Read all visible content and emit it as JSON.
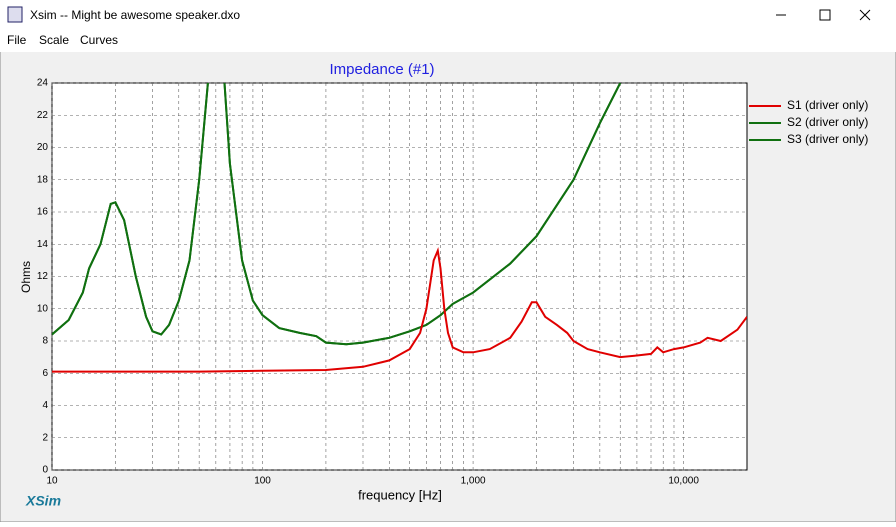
{
  "window": {
    "title": "Xsim -- Might be awesome speaker.dxo",
    "menu": [
      "File",
      "Scale",
      "Curves"
    ],
    "brand": "XSim"
  },
  "chart_data": {
    "type": "line",
    "title": "Impedance (#1)",
    "x_label": "frequency [Hz]",
    "y_label": "Ohms",
    "xscale": "log",
    "xlim": [
      10,
      20000
    ],
    "ylim": [
      0,
      24
    ],
    "xticks": [
      10,
      100,
      {
        "value": 1000,
        "label": "1,000"
      },
      {
        "value": 10000,
        "label": "10,000"
      }
    ],
    "xminor_ticks": [
      20,
      30,
      40,
      50,
      60,
      70,
      80,
      90,
      200,
      300,
      400,
      500,
      600,
      700,
      800,
      900,
      2000,
      3000,
      4000,
      5000,
      6000,
      7000,
      8000,
      9000
    ],
    "yticks": [
      0,
      2,
      4,
      6,
      8,
      10,
      12,
      14,
      16,
      18,
      20,
      22,
      24
    ],
    "grid": true,
    "legend": "right",
    "series": [
      {
        "name": "S1 (driver only)",
        "color": "#e00000",
        "x": [
          10,
          50,
          100,
          200,
          300,
          400,
          500,
          560,
          600,
          650,
          680,
          700,
          730,
          760,
          800,
          900,
          1000,
          1200,
          1500,
          1700,
          1900,
          2000,
          2200,
          2500,
          2800,
          3000,
          3500,
          4000,
          5000,
          6000,
          7000,
          7500,
          8000,
          9000,
          10000,
          12000,
          13000,
          15000,
          18000,
          20000
        ],
        "values": [
          6.1,
          6.1,
          6.15,
          6.2,
          6.4,
          6.8,
          7.5,
          8.5,
          10,
          13.0,
          13.6,
          12.5,
          10,
          8.5,
          7.6,
          7.3,
          7.3,
          7.5,
          8.2,
          9.2,
          10.4,
          10.4,
          9.5,
          9.0,
          8.5,
          8.0,
          7.5,
          7.3,
          7.0,
          7.1,
          7.2,
          7.6,
          7.3,
          7.5,
          7.6,
          7.9,
          8.2,
          8.0,
          8.7,
          9.5
        ]
      },
      {
        "name": "S2 (driver only)",
        "color": "#107010",
        "x": [
          10,
          12,
          14,
          15,
          17,
          19,
          20,
          22,
          25,
          28,
          30,
          33,
          36,
          40,
          45,
          50,
          55,
          60,
          66,
          70,
          80,
          90,
          100,
          120,
          150,
          180,
          200,
          250,
          300,
          400,
          500,
          600,
          700,
          800,
          1000,
          1500,
          2000,
          3000,
          4000,
          5000
        ],
        "values": [
          8.4,
          9.3,
          11,
          12.5,
          14,
          16.5,
          16.6,
          15.5,
          12,
          9.5,
          8.6,
          8.4,
          9.0,
          10.5,
          13,
          18,
          24,
          null,
          24,
          19,
          13,
          10.5,
          9.6,
          8.8,
          8.5,
          8.3,
          7.9,
          7.8,
          7.9,
          8.2,
          8.6,
          9.0,
          9.6,
          10.3,
          11.0,
          12.8,
          14.5,
          18,
          21.5,
          24
        ]
      },
      {
        "name": "S3 (driver only)",
        "color": "#107010",
        "x": [
          10,
          12,
          14,
          15,
          17,
          19,
          20,
          22,
          25,
          28,
          30,
          33,
          36,
          40,
          45,
          50,
          55,
          60,
          66,
          70,
          80,
          90,
          100,
          120,
          150,
          180,
          200,
          250,
          300,
          400,
          500,
          600,
          700,
          800,
          1000,
          1500,
          2000,
          3000,
          4000,
          5000
        ],
        "values": [
          8.4,
          9.3,
          11,
          12.5,
          14,
          16.5,
          16.6,
          15.5,
          12,
          9.5,
          8.6,
          8.4,
          9.0,
          10.5,
          13,
          18,
          24,
          null,
          24,
          19,
          13,
          10.5,
          9.6,
          8.8,
          8.5,
          8.3,
          7.9,
          7.8,
          7.9,
          8.2,
          8.6,
          9.0,
          9.6,
          10.3,
          11.0,
          12.8,
          14.5,
          18,
          21.5,
          24
        ]
      }
    ]
  }
}
